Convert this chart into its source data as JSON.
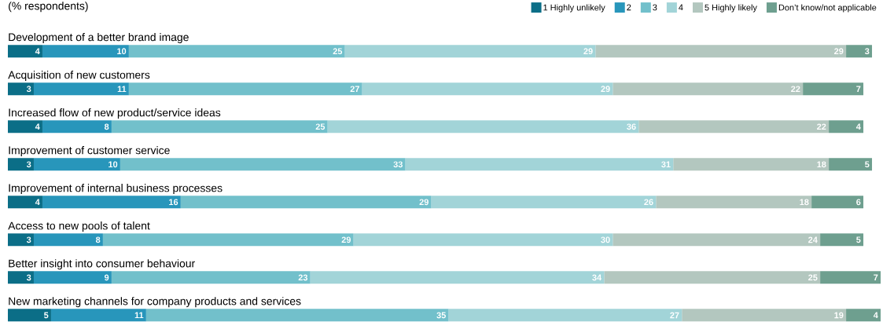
{
  "chart_data": {
    "type": "bar",
    "orientation": "horizontal",
    "stacked": true,
    "data_labels": true,
    "legend": "top right",
    "title": "(% respondents)",
    "categories": [
      "Development of a better brand image",
      "Acquisition of new customers",
      "Increased flow of new product/service ideas",
      "Improvement of customer service",
      "Improvement of internal business processes",
      "Access to new pools of talent",
      "Better insight into consumer behaviour",
      "New marketing channels for company products and services"
    ],
    "series": [
      {
        "name": "1 Highly unlikely",
        "color": "#0b6e87",
        "values": [
          4,
          3,
          4,
          3,
          4,
          3,
          3,
          5
        ]
      },
      {
        "name": "2",
        "color": "#2896bb",
        "values": [
          10,
          11,
          8,
          10,
          16,
          8,
          9,
          11
        ]
      },
      {
        "name": "3",
        "color": "#72c0cb",
        "values": [
          25,
          27,
          25,
          33,
          29,
          29,
          23,
          35
        ]
      },
      {
        "name": "4",
        "color": "#a2d4d8",
        "values": [
          29,
          29,
          36,
          31,
          26,
          30,
          34,
          27
        ]
      },
      {
        "name": "5 Highly likely",
        "color": "#b3c7bf",
        "values": [
          29,
          22,
          22,
          18,
          18,
          24,
          25,
          19
        ]
      },
      {
        "name": "Don’t know/not applicable",
        "color": "#6e9f8f",
        "values": [
          3,
          7,
          4,
          5,
          6,
          5,
          7,
          4
        ]
      }
    ]
  }
}
